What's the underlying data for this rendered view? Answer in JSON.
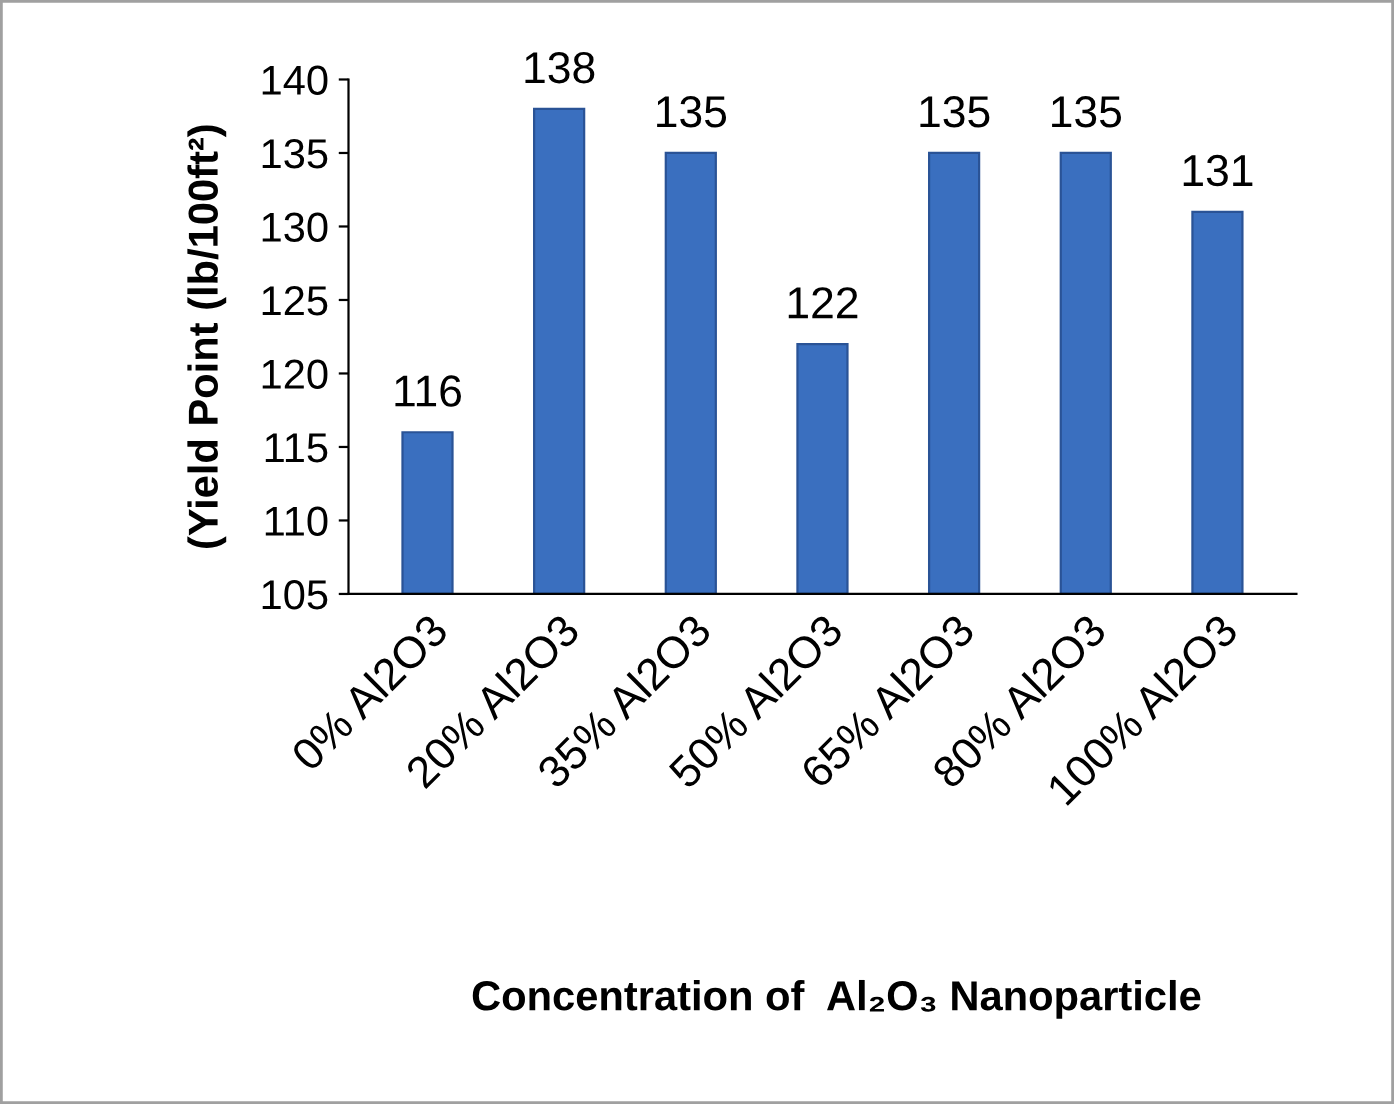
{
  "chart_data": {
    "type": "bar",
    "categories": [
      "0% Al2O3",
      "20% Al2O3",
      "35% Al2O3",
      "50% Al2O3",
      "65% Al2O3",
      "80% Al2O3",
      "100% Al2O3"
    ],
    "values": [
      116,
      138,
      135,
      122,
      135,
      135,
      131
    ],
    "color": "#3a6fbf",
    "xlabel": "Concentration of  Al₂O₃ Nanoparticle",
    "ylabel": "(Yield Point (lb/100ft²)",
    "ylim": [
      105,
      140
    ],
    "yticks": [
      105,
      110,
      115,
      120,
      125,
      130,
      135,
      140
    ],
    "grid": false,
    "data_labels": true,
    "legend": false
  }
}
